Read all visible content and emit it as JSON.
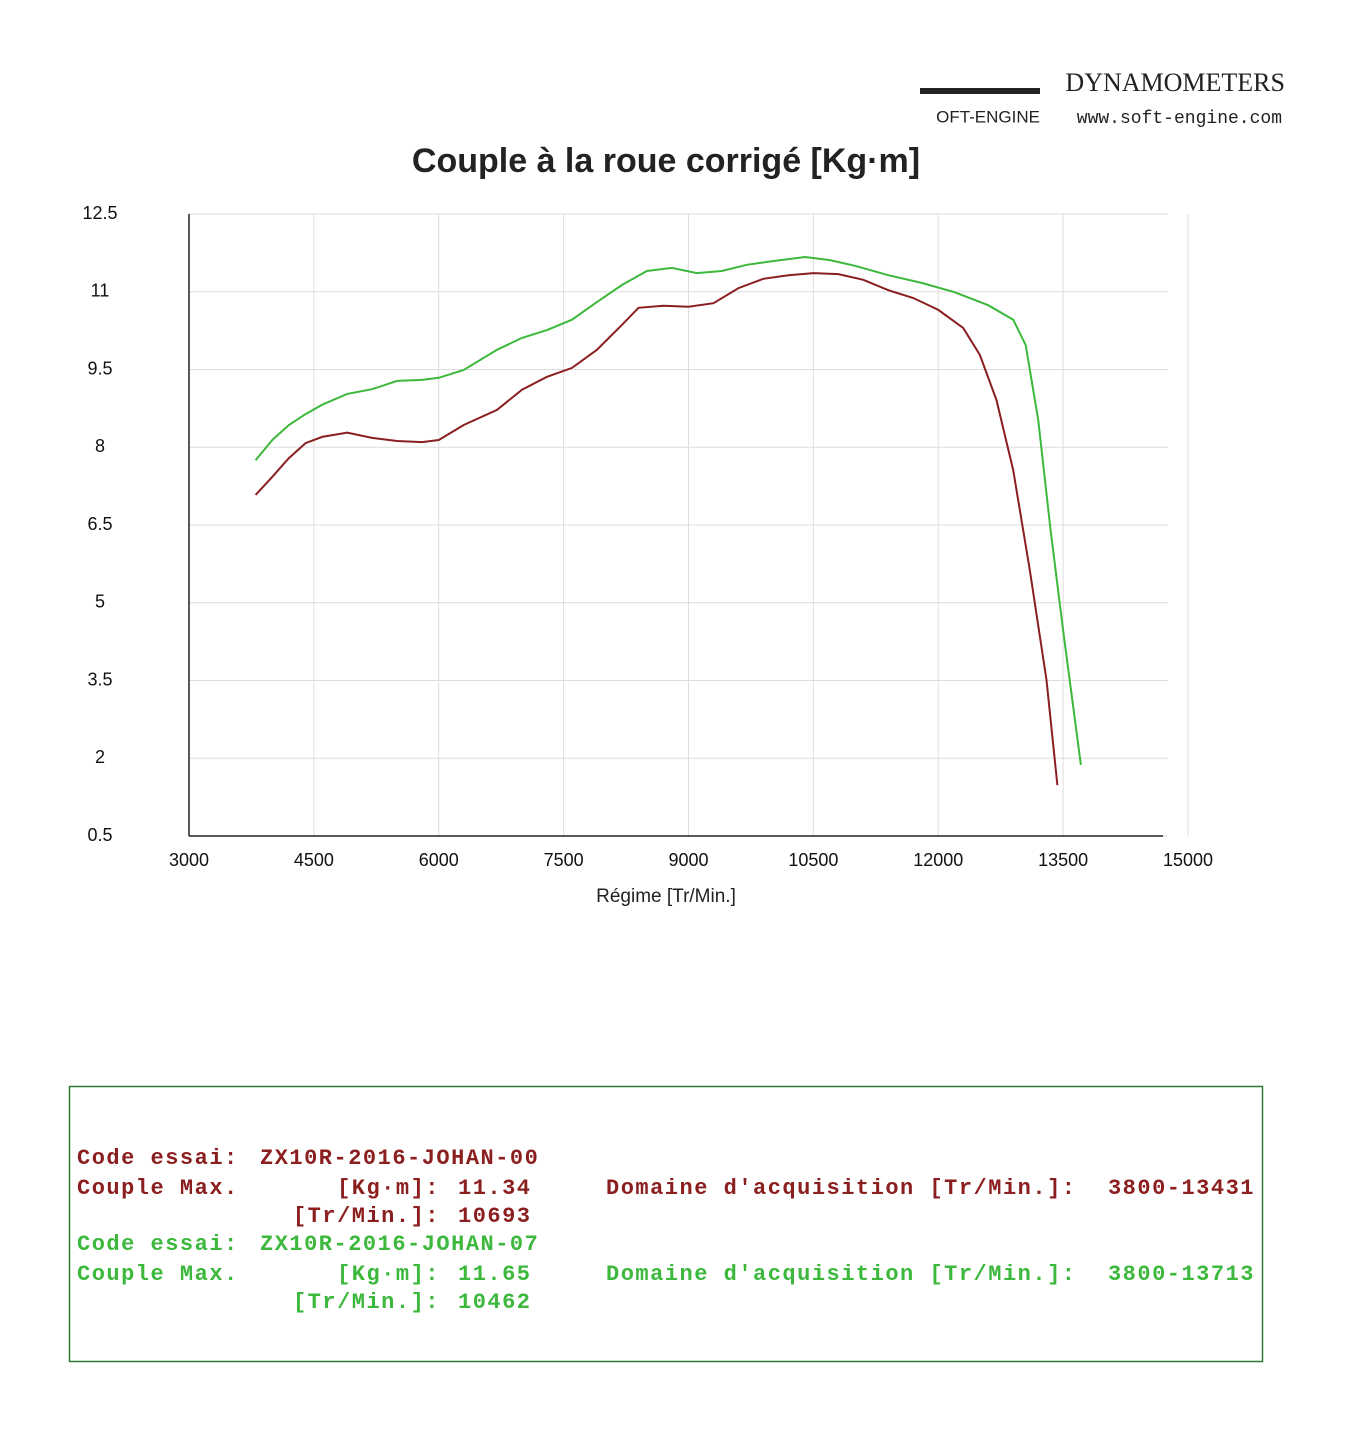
{
  "logo": {
    "brand": "DYNAMOMETERS",
    "name": "OFT-ENGINE",
    "url": "www.soft-engine.com"
  },
  "chart_data": {
    "type": "line",
    "title": "Couple à la roue corrigé [Kg·m]",
    "x_label": "Régime [Tr/Min.]",
    "xlim": [
      3000,
      15000
    ],
    "xticks": [
      3000,
      4500,
      6000,
      7500,
      9000,
      10500,
      12000,
      13500,
      15000
    ],
    "ylim": [
      0.5,
      12.5
    ],
    "yticks": [
      0.5,
      2,
      3.5,
      5,
      6.5,
      8,
      9.5,
      11,
      12.5
    ],
    "grid": true,
    "series": [
      {
        "name": "ZX10R-2016-JOHAN-00",
        "color": "#8b1e1e",
        "x": [
          3800,
          4000,
          4200,
          4400,
          4600,
          4900,
          5200,
          5500,
          5800,
          6000,
          6300,
          6700,
          7000,
          7300,
          7600,
          7900,
          8200,
          8400,
          8700,
          9000,
          9300,
          9600,
          9900,
          10200,
          10500,
          10800,
          11100,
          11400,
          11700,
          12000,
          12300,
          12500,
          12700,
          12900,
          13100,
          13300,
          13431
        ],
        "values": [
          7.08,
          7.43,
          7.79,
          8.08,
          8.2,
          8.28,
          8.18,
          8.12,
          8.1,
          8.14,
          8.43,
          8.72,
          9.11,
          9.36,
          9.53,
          9.88,
          10.36,
          10.69,
          10.73,
          10.71,
          10.78,
          11.07,
          11.25,
          11.32,
          11.36,
          11.34,
          11.23,
          11.03,
          10.88,
          10.65,
          10.3,
          9.78,
          8.91,
          7.56,
          5.63,
          3.51,
          1.48
        ]
      },
      {
        "name": "ZX10R-2016-JOHAN-07",
        "color": "#3cb83c",
        "x": [
          3800,
          4000,
          4200,
          4400,
          4600,
          4900,
          5200,
          5500,
          5800,
          6000,
          6300,
          6700,
          7000,
          7300,
          7600,
          7900,
          8200,
          8500,
          8800,
          9100,
          9400,
          9700,
          10000,
          10400,
          10700,
          11000,
          11400,
          11800,
          12200,
          12600,
          12900,
          13050,
          13200,
          13350,
          13500,
          13713
        ],
        "values": [
          7.75,
          8.14,
          8.43,
          8.64,
          8.82,
          9.03,
          9.12,
          9.28,
          9.3,
          9.34,
          9.49,
          9.88,
          10.11,
          10.26,
          10.46,
          10.8,
          11.13,
          11.4,
          11.46,
          11.36,
          11.4,
          11.52,
          11.59,
          11.67,
          11.61,
          11.5,
          11.32,
          11.17,
          10.99,
          10.74,
          10.46,
          9.97,
          8.53,
          6.4,
          4.47,
          1.87
        ]
      }
    ]
  },
  "info": {
    "code_label": "Code essai:",
    "max_label": "Couple Max.",
    "kgm_label": "[Kg·m]:",
    "rpm_label": "[Tr/Min.]:",
    "domain_label": "Domaine d'acquisition [Tr/Min.]:",
    "runs": [
      {
        "couple_max": "11.34",
        "rpm_max": "10693",
        "domain": "3800-13431"
      },
      {
        "couple_max": "11.65",
        "rpm_max": "10462",
        "domain": "3800-13713"
      }
    ]
  }
}
